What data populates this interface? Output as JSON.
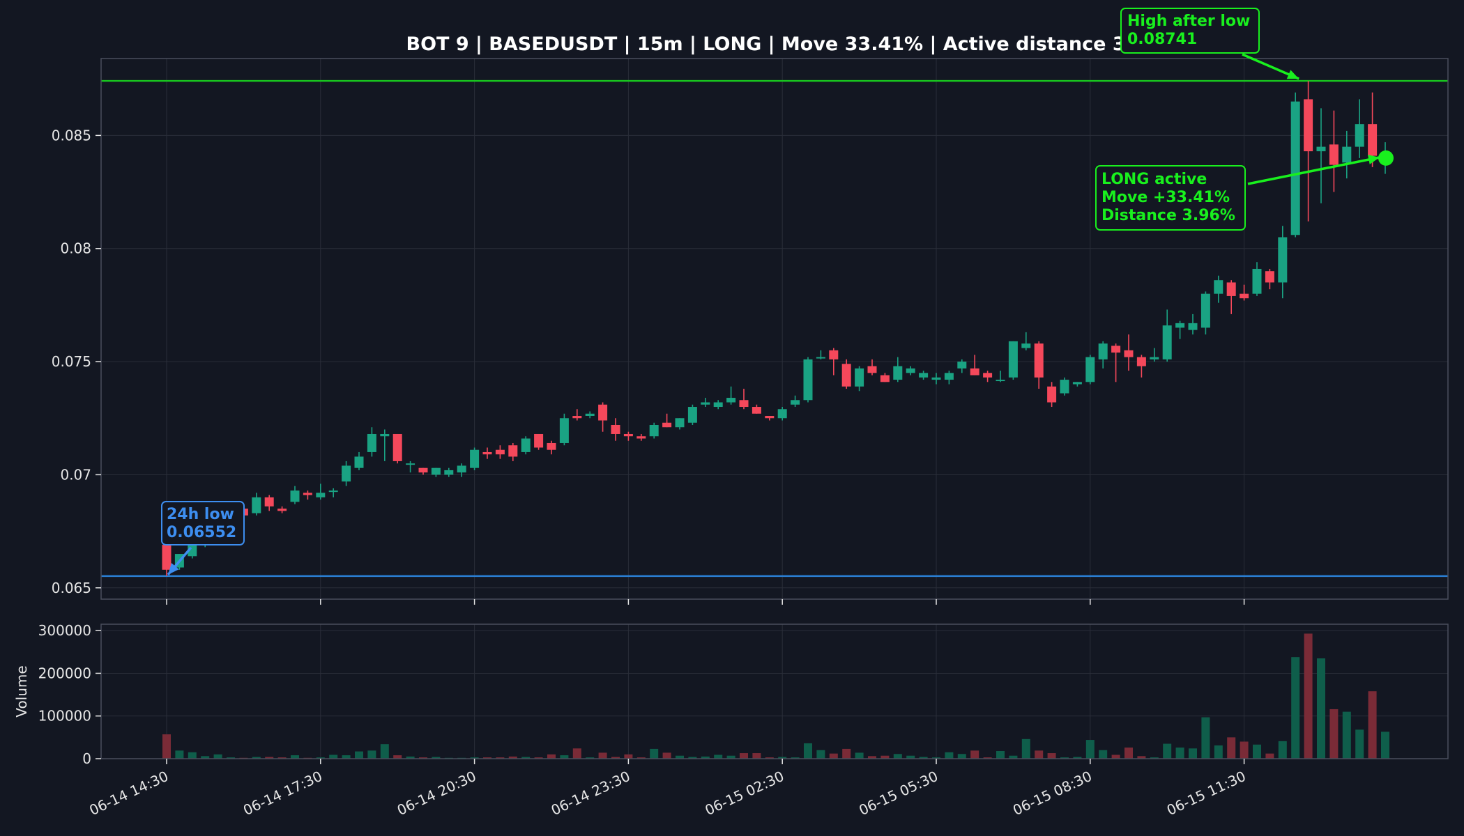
{
  "colors": {
    "background": "#131722",
    "panel": "#131722",
    "grid": "#2a2e39",
    "frame": "#4a4f5c",
    "up": "#1aa383",
    "down": "#f5485b",
    "vol_up": "#0f5e4b",
    "vol_down": "#7a2b37",
    "high_line": "#18c41f",
    "low_line": "#2a7fd4",
    "low_text": "#3d8ef0",
    "active": "#19f01e"
  },
  "chart_data": {
    "type": "candlestick",
    "title": "BOT 9 | BASEDUSDT | 15m | LONG | Move 33.41% | Active distance 3.96%",
    "interval_minutes": 15,
    "start_time": "06-14 14:30",
    "price_axis": {
      "range": [
        0.0645,
        0.0884
      ],
      "ticks": [
        0.065,
        0.07,
        0.075,
        0.08,
        0.085
      ],
      "tick_labels": [
        "0.065",
        "0.07",
        "0.075",
        "0.08",
        "0.085"
      ]
    },
    "volume_axis": {
      "label": "Volume",
      "range": [
        0,
        315000
      ],
      "ticks": [
        0,
        100000,
        200000,
        300000
      ],
      "tick_labels": [
        "0",
        "100000",
        "200000",
        "300000"
      ]
    },
    "x_axis": {
      "tick_labels": [
        "06-14 14:30",
        "06-14 17:30",
        "06-14 20:30",
        "06-14 23:30",
        "06-15 02:30",
        "06-15 05:30",
        "06-15 08:30",
        "06-15 11:30"
      ],
      "tick_candle_index": [
        0,
        12,
        24,
        36,
        48,
        60,
        72,
        84
      ]
    },
    "grid": true,
    "candles": [
      {
        "o": 0.0669,
        "h": 0.0671,
        "l": 0.06552,
        "c": 0.0658,
        "v": 57000
      },
      {
        "o": 0.0659,
        "h": 0.0665,
        "l": 0.0658,
        "c": 0.0665,
        "v": 19000
      },
      {
        "o": 0.0664,
        "h": 0.0672,
        "l": 0.0663,
        "c": 0.067,
        "v": 15000
      },
      {
        "o": 0.0669,
        "h": 0.0676,
        "l": 0.0668,
        "c": 0.0674,
        "v": 6000
      },
      {
        "o": 0.0674,
        "h": 0.068,
        "l": 0.0672,
        "c": 0.0678,
        "v": 10000
      },
      {
        "o": 0.068,
        "h": 0.0685,
        "l": 0.0679,
        "c": 0.0682,
        "v": 3000
      },
      {
        "o": 0.0685,
        "h": 0.0687,
        "l": 0.068,
        "c": 0.0682,
        "v": 2000
      },
      {
        "o": 0.0683,
        "h": 0.0692,
        "l": 0.0682,
        "c": 0.069,
        "v": 4000
      },
      {
        "o": 0.069,
        "h": 0.0691,
        "l": 0.0684,
        "c": 0.0686,
        "v": 4000
      },
      {
        "o": 0.0685,
        "h": 0.0686,
        "l": 0.0683,
        "c": 0.0684,
        "v": 3000
      },
      {
        "o": 0.0688,
        "h": 0.0695,
        "l": 0.0687,
        "c": 0.0693,
        "v": 8000
      },
      {
        "o": 0.0692,
        "h": 0.0693,
        "l": 0.0689,
        "c": 0.0691,
        "v": 2000
      },
      {
        "o": 0.069,
        "h": 0.0696,
        "l": 0.0689,
        "c": 0.0692,
        "v": 3000
      },
      {
        "o": 0.0693,
        "h": 0.0694,
        "l": 0.069,
        "c": 0.0693,
        "v": 9000
      },
      {
        "o": 0.0697,
        "h": 0.0706,
        "l": 0.0695,
        "c": 0.0704,
        "v": 8000
      },
      {
        "o": 0.0703,
        "h": 0.071,
        "l": 0.0702,
        "c": 0.0708,
        "v": 17000
      },
      {
        "o": 0.071,
        "h": 0.0721,
        "l": 0.0708,
        "c": 0.0718,
        "v": 19000
      },
      {
        "o": 0.0717,
        "h": 0.072,
        "l": 0.0706,
        "c": 0.0718,
        "v": 34000
      },
      {
        "o": 0.0718,
        "h": 0.0718,
        "l": 0.0705,
        "c": 0.0706,
        "v": 8000
      },
      {
        "o": 0.0705,
        "h": 0.0706,
        "l": 0.0701,
        "c": 0.0705,
        "v": 5000
      },
      {
        "o": 0.0703,
        "h": 0.0703,
        "l": 0.07,
        "c": 0.0701,
        "v": 3000
      },
      {
        "o": 0.07,
        "h": 0.0703,
        "l": 0.0699,
        "c": 0.0703,
        "v": 4000
      },
      {
        "o": 0.07,
        "h": 0.0703,
        "l": 0.0699,
        "c": 0.0702,
        "v": 2000
      },
      {
        "o": 0.0701,
        "h": 0.0705,
        "l": 0.0699,
        "c": 0.0704,
        "v": 2000
      },
      {
        "o": 0.0703,
        "h": 0.0712,
        "l": 0.0702,
        "c": 0.0711,
        "v": 3000
      },
      {
        "o": 0.071,
        "h": 0.0712,
        "l": 0.0707,
        "c": 0.0709,
        "v": 3000
      },
      {
        "o": 0.0711,
        "h": 0.0713,
        "l": 0.0707,
        "c": 0.0709,
        "v": 3000
      },
      {
        "o": 0.0713,
        "h": 0.0714,
        "l": 0.0706,
        "c": 0.0708,
        "v": 5000
      },
      {
        "o": 0.071,
        "h": 0.0717,
        "l": 0.0709,
        "c": 0.0716,
        "v": 4000
      },
      {
        "o": 0.0718,
        "h": 0.0718,
        "l": 0.0711,
        "c": 0.0712,
        "v": 3000
      },
      {
        "o": 0.0714,
        "h": 0.0715,
        "l": 0.0709,
        "c": 0.0711,
        "v": 10000
      },
      {
        "o": 0.0714,
        "h": 0.0727,
        "l": 0.0713,
        "c": 0.0725,
        "v": 8000
      },
      {
        "o": 0.0726,
        "h": 0.0729,
        "l": 0.0724,
        "c": 0.0725,
        "v": 24000
      },
      {
        "o": 0.0726,
        "h": 0.0728,
        "l": 0.0725,
        "c": 0.0727,
        "v": 3000
      },
      {
        "o": 0.0731,
        "h": 0.0732,
        "l": 0.0719,
        "c": 0.0724,
        "v": 14000
      },
      {
        "o": 0.0722,
        "h": 0.0725,
        "l": 0.0715,
        "c": 0.0718,
        "v": 4000
      },
      {
        "o": 0.0718,
        "h": 0.0719,
        "l": 0.0715,
        "c": 0.0717,
        "v": 10000
      },
      {
        "o": 0.0717,
        "h": 0.0718,
        "l": 0.0715,
        "c": 0.0716,
        "v": 3000
      },
      {
        "o": 0.0717,
        "h": 0.0723,
        "l": 0.0716,
        "c": 0.0722,
        "v": 23000
      },
      {
        "o": 0.0723,
        "h": 0.0727,
        "l": 0.0721,
        "c": 0.0721,
        "v": 14000
      },
      {
        "o": 0.0721,
        "h": 0.0725,
        "l": 0.072,
        "c": 0.0725,
        "v": 7000
      },
      {
        "o": 0.0723,
        "h": 0.0731,
        "l": 0.0722,
        "c": 0.073,
        "v": 4000
      },
      {
        "o": 0.0731,
        "h": 0.0734,
        "l": 0.073,
        "c": 0.0732,
        "v": 5000
      },
      {
        "o": 0.073,
        "h": 0.0733,
        "l": 0.0729,
        "c": 0.0732,
        "v": 9000
      },
      {
        "o": 0.0732,
        "h": 0.0739,
        "l": 0.0731,
        "c": 0.0734,
        "v": 7000
      },
      {
        "o": 0.0733,
        "h": 0.0738,
        "l": 0.0729,
        "c": 0.073,
        "v": 13000
      },
      {
        "o": 0.073,
        "h": 0.0731,
        "l": 0.0727,
        "c": 0.0727,
        "v": 13000
      },
      {
        "o": 0.0726,
        "h": 0.0726,
        "l": 0.0724,
        "c": 0.0725,
        "v": 3000
      },
      {
        "o": 0.0725,
        "h": 0.073,
        "l": 0.0724,
        "c": 0.0729,
        "v": 4000
      },
      {
        "o": 0.0731,
        "h": 0.0735,
        "l": 0.073,
        "c": 0.0733,
        "v": 3000
      },
      {
        "o": 0.0733,
        "h": 0.0752,
        "l": 0.0732,
        "c": 0.0751,
        "v": 36000
      },
      {
        "o": 0.0752,
        "h": 0.0755,
        "l": 0.0751,
        "c": 0.0752,
        "v": 20000
      },
      {
        "o": 0.0755,
        "h": 0.0756,
        "l": 0.0744,
        "c": 0.0751,
        "v": 12000
      },
      {
        "o": 0.0749,
        "h": 0.0751,
        "l": 0.0738,
        "c": 0.0739,
        "v": 23000
      },
      {
        "o": 0.0739,
        "h": 0.0748,
        "l": 0.0737,
        "c": 0.0747,
        "v": 14000
      },
      {
        "o": 0.0748,
        "h": 0.0751,
        "l": 0.0744,
        "c": 0.0745,
        "v": 6000
      },
      {
        "o": 0.0744,
        "h": 0.0745,
        "l": 0.0741,
        "c": 0.0741,
        "v": 7000
      },
      {
        "o": 0.0742,
        "h": 0.0752,
        "l": 0.0741,
        "c": 0.0748,
        "v": 11000
      },
      {
        "o": 0.0745,
        "h": 0.0748,
        "l": 0.0744,
        "c": 0.0747,
        "v": 7000
      },
      {
        "o": 0.0743,
        "h": 0.0746,
        "l": 0.0742,
        "c": 0.0745,
        "v": 4000
      },
      {
        "o": 0.0742,
        "h": 0.0745,
        "l": 0.074,
        "c": 0.0743,
        "v": 3000
      },
      {
        "o": 0.0742,
        "h": 0.0746,
        "l": 0.074,
        "c": 0.0745,
        "v": 15000
      },
      {
        "o": 0.0747,
        "h": 0.0751,
        "l": 0.0745,
        "c": 0.075,
        "v": 11000
      },
      {
        "o": 0.0747,
        "h": 0.0753,
        "l": 0.0744,
        "c": 0.0744,
        "v": 19000
      },
      {
        "o": 0.0745,
        "h": 0.0746,
        "l": 0.0741,
        "c": 0.0743,
        "v": 3000
      },
      {
        "o": 0.0742,
        "h": 0.0746,
        "l": 0.0741,
        "c": 0.0742,
        "v": 18000
      },
      {
        "o": 0.0743,
        "h": 0.0759,
        "l": 0.0742,
        "c": 0.0759,
        "v": 7000
      },
      {
        "o": 0.0756,
        "h": 0.0763,
        "l": 0.0755,
        "c": 0.0758,
        "v": 46000
      },
      {
        "o": 0.0758,
        "h": 0.0759,
        "l": 0.0738,
        "c": 0.0743,
        "v": 19000
      },
      {
        "o": 0.0739,
        "h": 0.0741,
        "l": 0.073,
        "c": 0.0732,
        "v": 13000
      },
      {
        "o": 0.0736,
        "h": 0.0743,
        "l": 0.0735,
        "c": 0.0742,
        "v": 3000
      },
      {
        "o": 0.074,
        "h": 0.0741,
        "l": 0.0739,
        "c": 0.0741,
        "v": 4000
      },
      {
        "o": 0.0741,
        "h": 0.0753,
        "l": 0.074,
        "c": 0.0752,
        "v": 44000
      },
      {
        "o": 0.0751,
        "h": 0.0759,
        "l": 0.0747,
        "c": 0.0758,
        "v": 20000
      },
      {
        "o": 0.0757,
        "h": 0.0758,
        "l": 0.0741,
        "c": 0.0754,
        "v": 9000
      },
      {
        "o": 0.0755,
        "h": 0.0762,
        "l": 0.0746,
        "c": 0.0752,
        "v": 26000
      },
      {
        "o": 0.0752,
        "h": 0.0753,
        "l": 0.0743,
        "c": 0.0748,
        "v": 6000
      },
      {
        "o": 0.0751,
        "h": 0.0756,
        "l": 0.075,
        "c": 0.0752,
        "v": 3000
      },
      {
        "o": 0.0751,
        "h": 0.0773,
        "l": 0.075,
        "c": 0.0766,
        "v": 35000
      },
      {
        "o": 0.0765,
        "h": 0.0768,
        "l": 0.076,
        "c": 0.0767,
        "v": 26000
      },
      {
        "o": 0.0764,
        "h": 0.0771,
        "l": 0.0762,
        "c": 0.0767,
        "v": 24000
      },
      {
        "o": 0.0765,
        "h": 0.0781,
        "l": 0.0762,
        "c": 0.078,
        "v": 97000
      },
      {
        "o": 0.078,
        "h": 0.0788,
        "l": 0.0776,
        "c": 0.0786,
        "v": 31000
      },
      {
        "o": 0.0785,
        "h": 0.0786,
        "l": 0.0771,
        "c": 0.0779,
        "v": 50000
      },
      {
        "o": 0.078,
        "h": 0.0784,
        "l": 0.0777,
        "c": 0.0778,
        "v": 40000
      },
      {
        "o": 0.078,
        "h": 0.0794,
        "l": 0.0779,
        "c": 0.0791,
        "v": 33000
      },
      {
        "o": 0.079,
        "h": 0.0791,
        "l": 0.0782,
        "c": 0.0785,
        "v": 12000
      },
      {
        "o": 0.0785,
        "h": 0.081,
        "l": 0.0778,
        "c": 0.0805,
        "v": 41000
      },
      {
        "o": 0.0806,
        "h": 0.0869,
        "l": 0.0805,
        "c": 0.0865,
        "v": 238000
      },
      {
        "o": 0.0866,
        "h": 0.08741,
        "l": 0.0812,
        "c": 0.0843,
        "v": 293000
      },
      {
        "o": 0.0843,
        "h": 0.0862,
        "l": 0.082,
        "c": 0.0845,
        "v": 235000
      },
      {
        "o": 0.0846,
        "h": 0.0861,
        "l": 0.0825,
        "c": 0.0837,
        "v": 116000
      },
      {
        "o": 0.0838,
        "h": 0.0852,
        "l": 0.0831,
        "c": 0.0845,
        "v": 110000
      },
      {
        "o": 0.0845,
        "h": 0.0866,
        "l": 0.084,
        "c": 0.0855,
        "v": 68000
      },
      {
        "o": 0.0855,
        "h": 0.0869,
        "l": 0.0836,
        "c": 0.0841,
        "v": 158000
      },
      {
        "o": 0.084,
        "h": 0.0847,
        "l": 0.0833,
        "c": 0.0842,
        "v": 63000
      }
    ],
    "reference_lines": [
      {
        "name": "high",
        "price": 0.08741
      },
      {
        "name": "low",
        "price": 0.06552
      }
    ],
    "annotations": {
      "low": {
        "lines": [
          "24h low",
          "0.06552"
        ],
        "candle_index": 0,
        "price": 0.06552
      },
      "high": {
        "lines": [
          "High after low",
          "0.08741"
        ],
        "candle_index": 88,
        "price": 0.08741
      },
      "active": {
        "lines": [
          "LONG active",
          "Move +33.41%",
          "Distance 3.96%"
        ],
        "candle_index": 95,
        "price": 0.084
      }
    }
  }
}
